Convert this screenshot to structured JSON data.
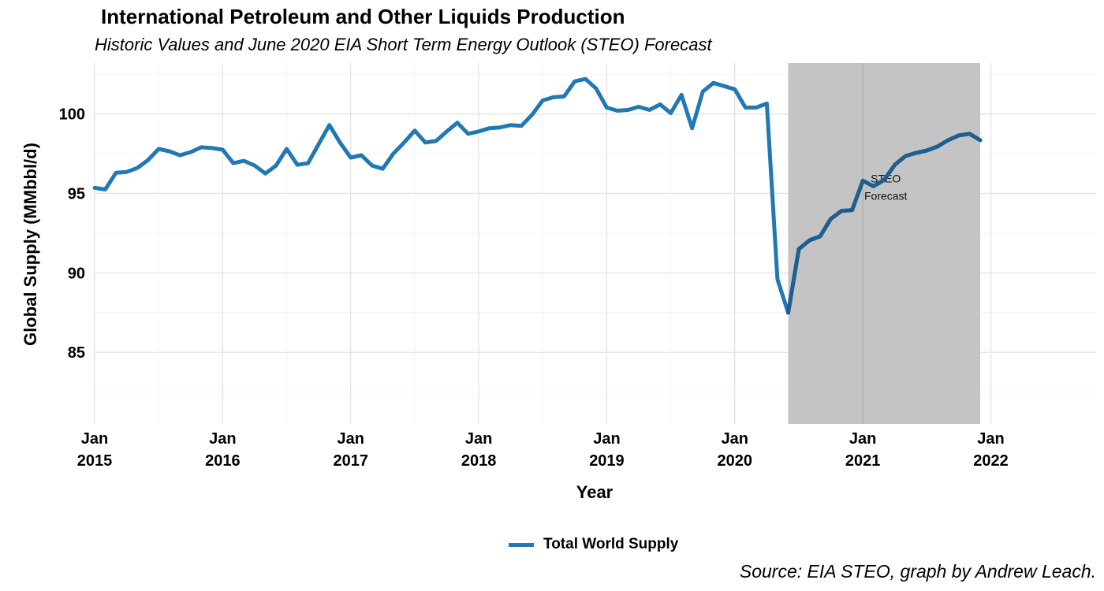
{
  "chart_data": {
    "type": "line",
    "title": "International Petroleum and Other Liquids Production",
    "subtitle": "Historic Values and June 2020 EIA Short Term Energy Outlook (STEO) Forecast",
    "xlabel": "Year",
    "ylabel": "Global Supply (MMbbl/d)",
    "caption": "Source: EIA STEO, graph by Andrew Leach.",
    "ylim": [
      80.5,
      103.2
    ],
    "xlim": [
      "2015-01",
      "2022-04"
    ],
    "yticks": [
      85,
      90,
      95,
      100
    ],
    "xticks": [
      {
        "date": "2015-01",
        "label_top": "Jan",
        "label_bottom": "2015"
      },
      {
        "date": "2016-01",
        "label_top": "Jan",
        "label_bottom": "2016"
      },
      {
        "date": "2017-01",
        "label_top": "Jan",
        "label_bottom": "2017"
      },
      {
        "date": "2018-01",
        "label_top": "Jan",
        "label_bottom": "2018"
      },
      {
        "date": "2019-01",
        "label_top": "Jan",
        "label_bottom": "2019"
      },
      {
        "date": "2020-01",
        "label_top": "Jan",
        "label_bottom": "2020"
      },
      {
        "date": "2021-01",
        "label_top": "Jan",
        "label_bottom": "2021"
      },
      {
        "date": "2022-01",
        "label_top": "Jan",
        "label_bottom": "2022"
      }
    ],
    "grid": true,
    "legend_position": "bottom",
    "forecast_region": {
      "start": "2020-06",
      "end": "2021-12",
      "color": "#c4c4c4",
      "label_line1": "STEO",
      "label_line2": "Forecast",
      "label_date": "2021-03",
      "label_y": 95.5
    },
    "series": [
      {
        "name": "Total World Supply",
        "color": "#2178b4",
        "forecast_color": "#1f5f90",
        "x": [
          "2015-01",
          "2015-02",
          "2015-03",
          "2015-04",
          "2015-05",
          "2015-06",
          "2015-07",
          "2015-08",
          "2015-09",
          "2015-10",
          "2015-11",
          "2015-12",
          "2016-01",
          "2016-02",
          "2016-03",
          "2016-04",
          "2016-05",
          "2016-06",
          "2016-07",
          "2016-08",
          "2016-09",
          "2016-10",
          "2016-11",
          "2016-12",
          "2017-01",
          "2017-02",
          "2017-03",
          "2017-04",
          "2017-05",
          "2017-06",
          "2017-07",
          "2017-08",
          "2017-09",
          "2017-10",
          "2017-11",
          "2017-12",
          "2018-01",
          "2018-02",
          "2018-03",
          "2018-04",
          "2018-05",
          "2018-06",
          "2018-07",
          "2018-08",
          "2018-09",
          "2018-10",
          "2018-11",
          "2018-12",
          "2019-01",
          "2019-02",
          "2019-03",
          "2019-04",
          "2019-05",
          "2019-06",
          "2019-07",
          "2019-08",
          "2019-09",
          "2019-10",
          "2019-11",
          "2019-12",
          "2020-01",
          "2020-02",
          "2020-03",
          "2020-04",
          "2020-05",
          "2020-06",
          "2020-07",
          "2020-08",
          "2020-09",
          "2020-10",
          "2020-11",
          "2020-12",
          "2021-01",
          "2021-02",
          "2021-03",
          "2021-04",
          "2021-05",
          "2021-06",
          "2021-07",
          "2021-08",
          "2021-09",
          "2021-10",
          "2021-11",
          "2021-12"
        ],
        "values": [
          95.35,
          95.25,
          96.3,
          96.35,
          96.6,
          97.1,
          97.8,
          97.65,
          97.4,
          97.6,
          97.9,
          97.85,
          97.75,
          96.9,
          97.05,
          96.75,
          96.25,
          96.75,
          97.8,
          96.8,
          96.9,
          98.1,
          99.3,
          98.2,
          97.25,
          97.4,
          96.75,
          96.55,
          97.5,
          98.2,
          98.95,
          98.2,
          98.3,
          98.9,
          99.45,
          98.75,
          98.9,
          99.1,
          99.15,
          99.3,
          99.25,
          99.95,
          100.85,
          101.05,
          101.1,
          102.05,
          102.2,
          101.6,
          100.4,
          100.2,
          100.25,
          100.45,
          100.25,
          100.6,
          100.05,
          101.2,
          99.1,
          101.4,
          101.95,
          101.75,
          101.55,
          100.4,
          100.4,
          100.65,
          89.6,
          87.5,
          91.5,
          92.05,
          92.3,
          93.4,
          93.9,
          93.95,
          95.8,
          95.45,
          95.85,
          96.8,
          97.35,
          97.55,
          97.7,
          97.95,
          98.35,
          98.65,
          98.75,
          98.35
        ]
      }
    ]
  }
}
